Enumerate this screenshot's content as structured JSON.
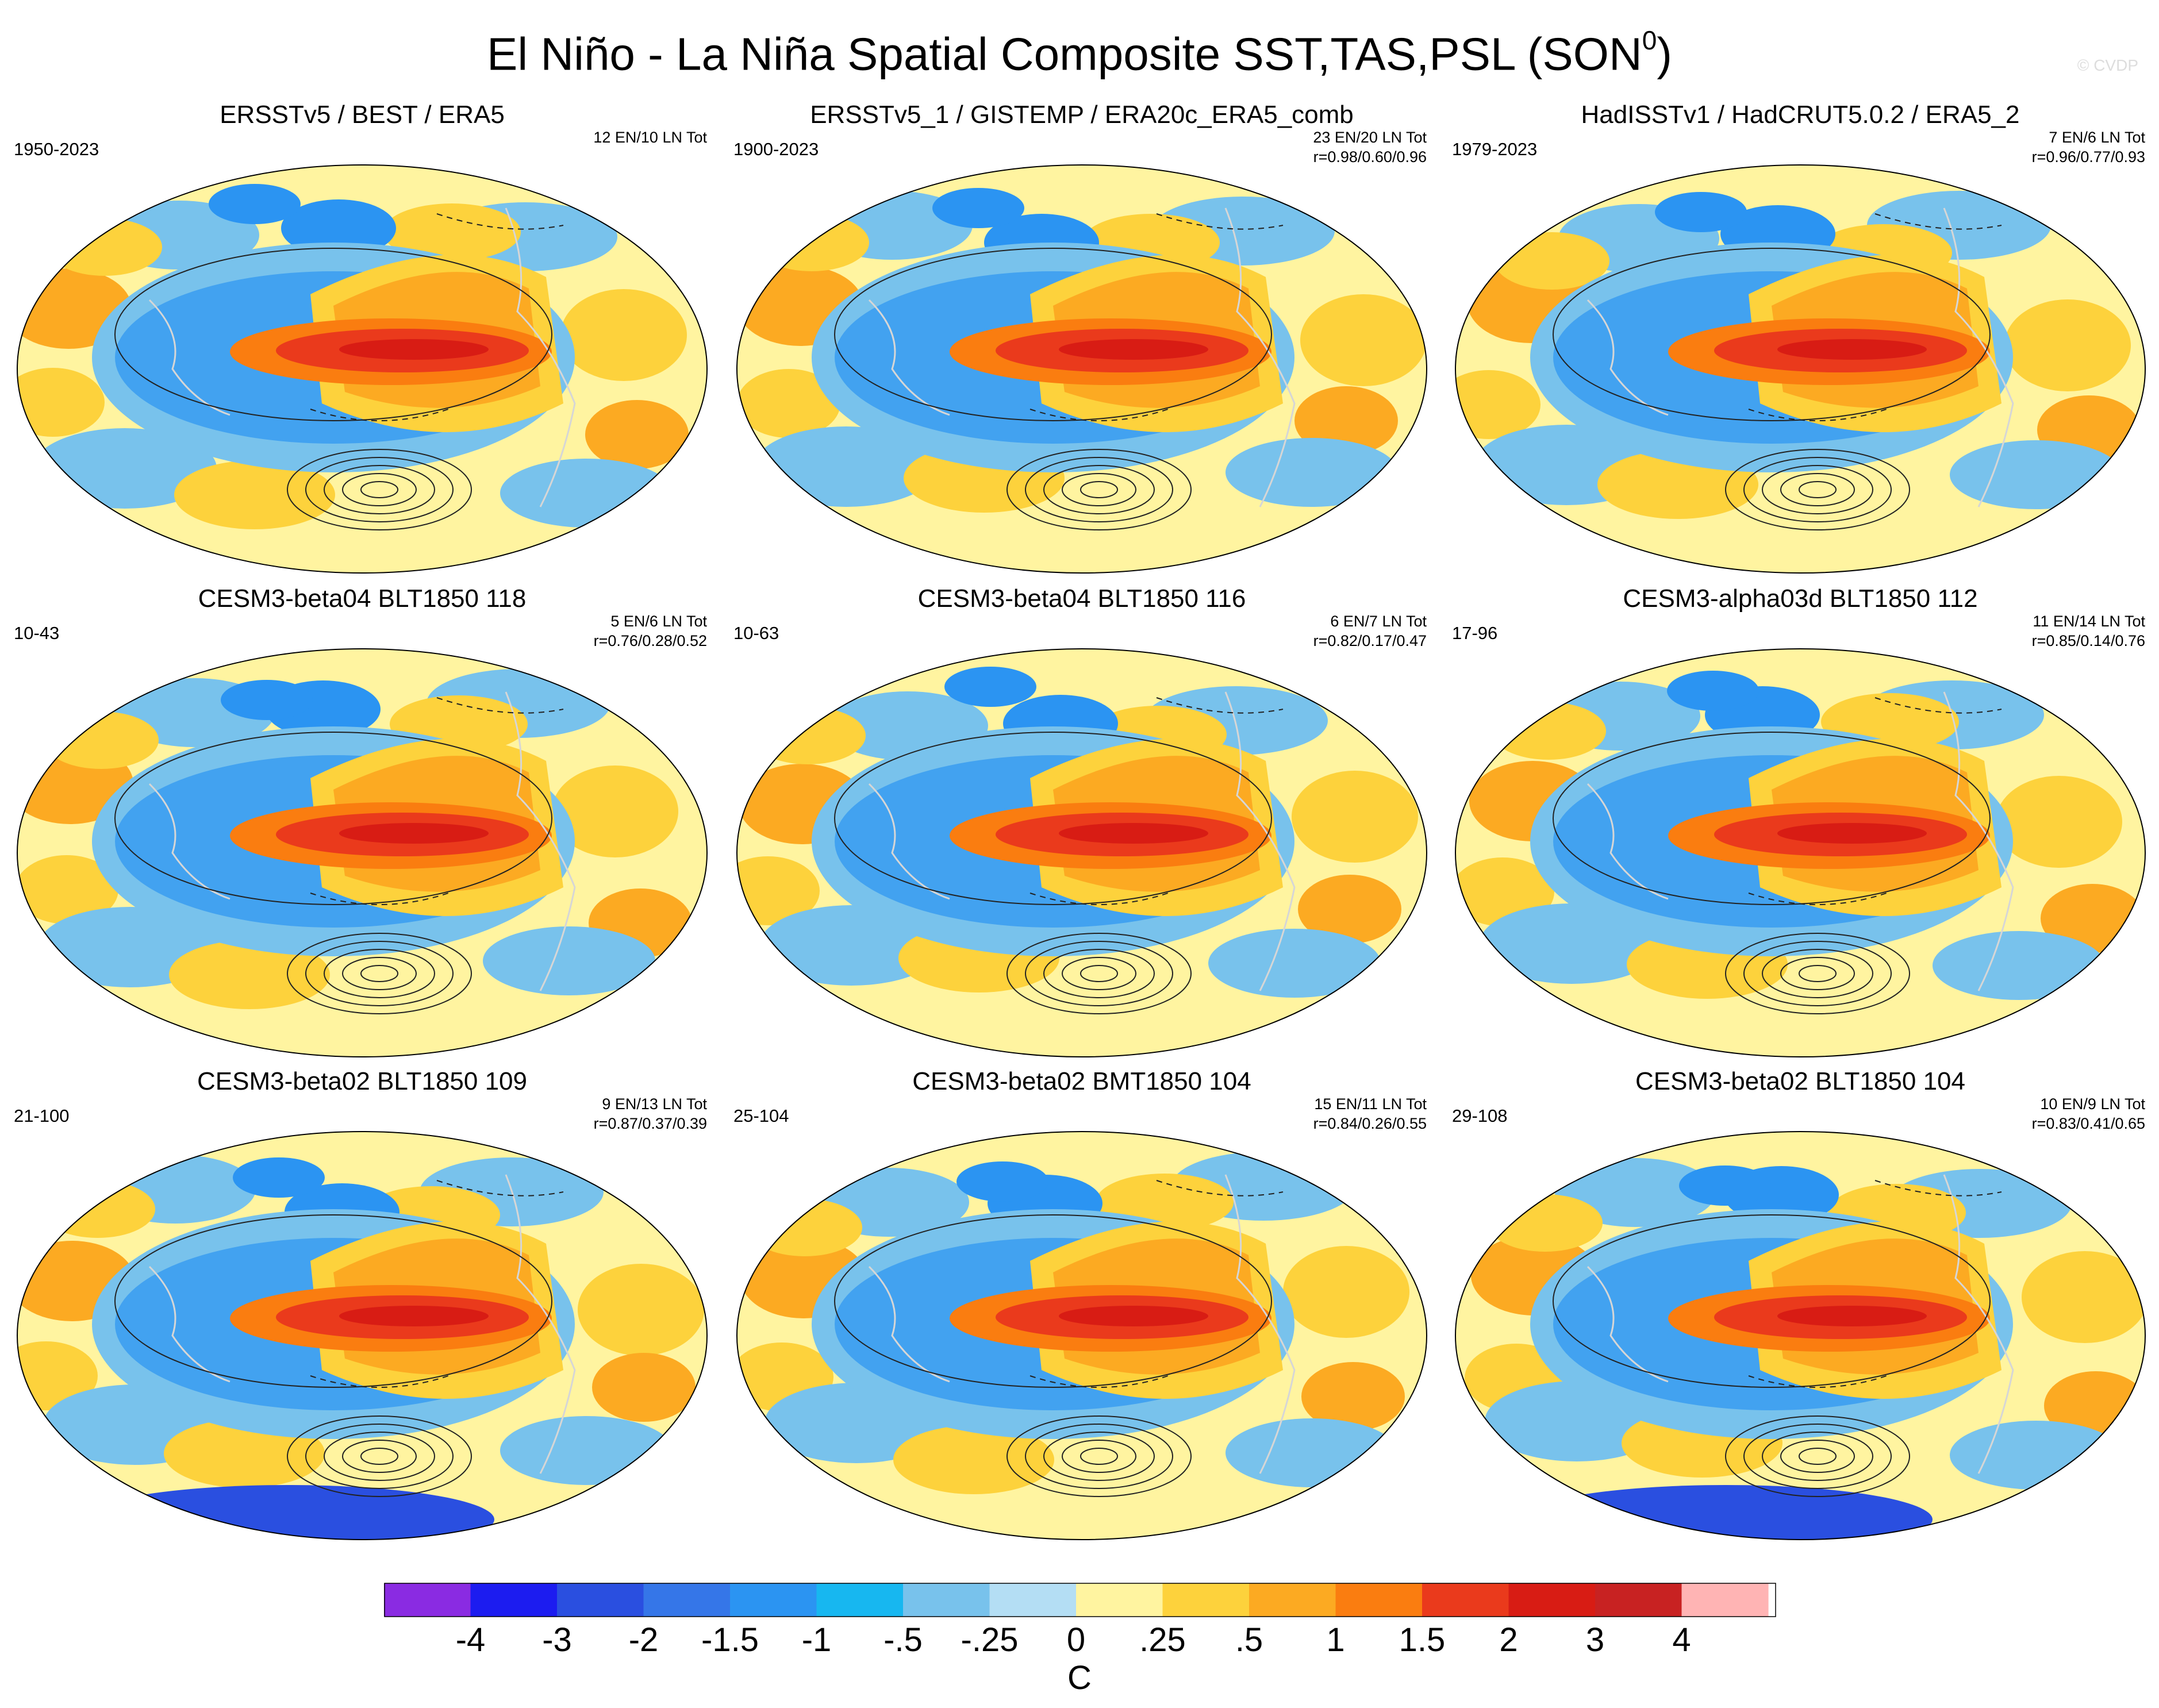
{
  "title": "El Niño - La Niña Spatial Composite SST,TAS,PSL (SON",
  "title_sup": "0",
  "title_end": ")",
  "copyright": "© CVDP",
  "panels": [
    {
      "title": "ERSSTv5 / BEST / ERA5",
      "years": "1950-2023",
      "stats_line1": "12 EN/10 LN Tot",
      "stats_line2": ""
    },
    {
      "title": "ERSSTv5_1 / GISTEMP / ERA20c_ERA5_comb",
      "years": "1900-2023",
      "stats_line1": "23 EN/20 LN Tot",
      "stats_line2": "r=0.98/0.60/0.96"
    },
    {
      "title": "HadISSTv1 / HadCRUT5.0.2 / ERA5_2",
      "years": "1979-2023",
      "stats_line1": "7 EN/6 LN Tot",
      "stats_line2": "r=0.96/0.77/0.93"
    },
    {
      "title": "CESM3-beta04 BLT1850 118",
      "years": "10-43",
      "stats_line1": "5 EN/6 LN Tot",
      "stats_line2": "r=0.76/0.28/0.52"
    },
    {
      "title": "CESM3-beta04 BLT1850 116",
      "years": "10-63",
      "stats_line1": "6 EN/7 LN Tot",
      "stats_line2": "r=0.82/0.17/0.47"
    },
    {
      "title": "CESM3-alpha03d BLT1850 112",
      "years": "17-96",
      "stats_line1": "11 EN/14 LN Tot",
      "stats_line2": "r=0.85/0.14/0.76"
    },
    {
      "title": "CESM3-beta02 BLT1850 109",
      "years": "21-100",
      "stats_line1": "9 EN/13 LN Tot",
      "stats_line2": "r=0.87/0.37/0.39"
    },
    {
      "title": "CESM3-beta02 BMT1850 104",
      "years": "25-104",
      "stats_line1": "15 EN/11 LN Tot",
      "stats_line2": "r=0.84/0.26/0.55"
    },
    {
      "title": "CESM3-beta02 BLT1850 104",
      "years": "29-108",
      "stats_line1": "10 EN/9 LN Tot",
      "stats_line2": "r=0.83/0.41/0.65"
    }
  ],
  "colorbar": {
    "labels": [
      "-4",
      "-3",
      "-2",
      "-1.5",
      "-1",
      "-.5",
      "-.25",
      "0",
      ".25",
      ".5",
      "1",
      "1.5",
      "2",
      "3",
      "4"
    ],
    "colors": [
      "#8a2be2",
      "#1c1cf0",
      "#2a4fe0",
      "#3576e8",
      "#2b94f2",
      "#17b7f0",
      "#78c2ec",
      "#b4def4",
      "#fff4a0",
      "#fdd23c",
      "#fcaa22",
      "#fa7d10",
      "#ea3a1c",
      "#d81c14",
      "#c82222",
      "#ffb4b4"
    ],
    "unit": "C"
  },
  "chart_data": {
    "type": "heatmap",
    "description_kind": "composite spatial maps",
    "variables": [
      "SST",
      "TAS",
      "PSL"
    ],
    "season": "SON",
    "colorbar_levels": [
      -4,
      -3,
      -2,
      -1.5,
      -1,
      -0.5,
      -0.25,
      0,
      0.25,
      0.5,
      1,
      1.5,
      2,
      3,
      4
    ],
    "colorbar_unit": "C"
  }
}
